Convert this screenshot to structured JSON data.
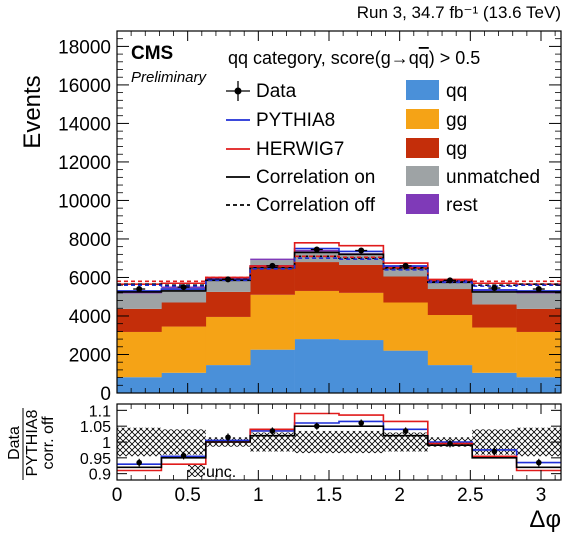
{
  "chart_data": [
    {
      "type": "stacked-bar",
      "title": "",
      "header_right": "Run 3, 34.7 fb⁻¹ (13.6 TeV)",
      "cms_label": "CMS",
      "preliminary_label": "Preliminary",
      "category_label": "qq category, score(g→qq̄) > 0.5",
      "xlabel": "Δφ",
      "ylabel": "Events",
      "xlim": [
        0,
        3.14159
      ],
      "ylim": [
        0,
        18800
      ],
      "x_ticks": [
        "0",
        "0.5",
        "1",
        "1.5",
        "2",
        "2.5",
        "3"
      ],
      "y_ticks": [
        "0",
        "2000",
        "4000",
        "6000",
        "8000",
        "10000",
        "12000",
        "14000",
        "16000",
        "18000"
      ],
      "bin_edges": [
        0,
        0.3142,
        0.6283,
        0.9425,
        1.2566,
        1.5708,
        1.885,
        2.1991,
        2.5133,
        2.8274,
        3.1416
      ],
      "series": [
        {
          "name": "qq",
          "color": "#4a90d9",
          "kind": "stack",
          "values": [
            820,
            1050,
            1450,
            2250,
            2800,
            2750,
            2200,
            1450,
            1050,
            820
          ]
        },
        {
          "name": "gg",
          "color": "#f5a316",
          "kind": "stack",
          "values": [
            2350,
            2400,
            2500,
            2850,
            2500,
            2450,
            2500,
            2600,
            2350,
            2350
          ]
        },
        {
          "name": "qg",
          "color": "#c42e0a",
          "kind": "stack",
          "values": [
            1200,
            1250,
            1300,
            1350,
            1500,
            1450,
            1350,
            1350,
            1200,
            1200
          ]
        },
        {
          "name": "unmatched",
          "color": "#9ea3a5",
          "kind": "stack",
          "values": [
            800,
            750,
            650,
            450,
            550,
            530,
            450,
            350,
            700,
            800
          ]
        },
        {
          "name": "rest",
          "color": "#7f3ab8",
          "kind": "stack",
          "values": [
            80,
            80,
            80,
            80,
            80,
            80,
            80,
            80,
            80,
            80
          ]
        },
        {
          "name": "Data",
          "color": "#000000",
          "kind": "points",
          "values": [
            5400,
            5500,
            5900,
            6600,
            7450,
            7400,
            6600,
            5850,
            5450,
            5400
          ],
          "errors": [
            80,
            80,
            85,
            90,
            95,
            95,
            90,
            85,
            80,
            80
          ]
        },
        {
          "name": "PYTHIA8",
          "color": "#1f2fd6",
          "kind": "step",
          "line": "solid",
          "values": [
            5300,
            5400,
            5900,
            6600,
            7500,
            7350,
            6600,
            5850,
            5350,
            5300
          ]
        },
        {
          "name": "HERWIG7",
          "color": "#e01b1b",
          "kind": "step",
          "line": "solid",
          "values": [
            5650,
            5700,
            6000,
            6600,
            7800,
            7650,
            6750,
            5900,
            5700,
            5650
          ]
        },
        {
          "name": "Correlation on",
          "color": "#000000",
          "kind": "step",
          "line": "solid",
          "values": [
            5250,
            5300,
            5850,
            6500,
            7300,
            7200,
            6500,
            5750,
            5250,
            5250
          ]
        },
        {
          "name": "Correlation off",
          "color": "#000000",
          "kind": "step",
          "line": "dashed",
          "values": [
            5650,
            5600,
            5900,
            6500,
            7100,
            7000,
            6450,
            5800,
            5600,
            5650
          ]
        },
        {
          "name": "HERWIG7 correlation off",
          "color": "#e01b1b",
          "kind": "step",
          "line": "dashed",
          "values": [
            5800,
            5800,
            6000,
            6550,
            7100,
            7050,
            6500,
            5850,
            5800,
            5800
          ]
        },
        {
          "name": "PYTHIA8 correlation off",
          "color": "#1f2fd6",
          "kind": "step",
          "line": "dashed",
          "values": [
            5600,
            5550,
            5850,
            6450,
            7000,
            6950,
            6400,
            5750,
            5550,
            5600
          ]
        }
      ],
      "legend": {
        "placement": "top",
        "left_column": [
          "Data",
          "PYTHIA8",
          "HERWIG7",
          "Correlation on",
          "Correlation off"
        ],
        "right_column": [
          "qq",
          "gg",
          "qg",
          "unmatched",
          "rest"
        ]
      }
    },
    {
      "type": "ratio",
      "ylabel_top": "Data",
      "ylabel_bottom": "PYTHIA8",
      "ylabel_extra": "corr. off",
      "xlabel": "Δφ",
      "ylim": [
        0.88,
        1.12
      ],
      "y_ticks": [
        "0.9",
        "0.95",
        "1",
        "1.05",
        "1.1"
      ],
      "unc_label": "unc.",
      "unc_band": [
        0.045,
        0.04,
        0.015,
        0.03,
        0.035,
        0.035,
        0.03,
        0.015,
        0.04,
        0.045
      ],
      "series": [
        {
          "name": "Data / PYTHIA8 corr. off",
          "color": "#000000",
          "kind": "points",
          "values": [
            0.935,
            0.957,
            1.015,
            1.035,
            1.05,
            1.06,
            1.035,
            0.995,
            0.97,
            0.935
          ],
          "errors": [
            0.012,
            0.012,
            0.012,
            0.011,
            0.011,
            0.011,
            0.011,
            0.012,
            0.012,
            0.012
          ]
        },
        {
          "name": "PYTHIA8 / PYTHIA8 corr. off",
          "color": "#1f2fd6",
          "kind": "step",
          "values": [
            0.93,
            0.955,
            1.005,
            1.035,
            1.06,
            1.065,
            1.04,
            1.0,
            0.975,
            0.935
          ]
        },
        {
          "name": "HERWIG7 / PYTHIA8 corr. off",
          "color": "#e01b1b",
          "kind": "step",
          "values": [
            0.91,
            0.93,
            1.0,
            1.04,
            1.09,
            1.085,
            1.065,
            0.995,
            0.955,
            0.91
          ]
        },
        {
          "name": "Correlation on / corr. off",
          "color": "#000000",
          "kind": "step",
          "values": [
            0.92,
            0.95,
            1.0,
            1.02,
            1.05,
            1.05,
            1.02,
            0.99,
            0.95,
            0.92
          ]
        }
      ]
    }
  ]
}
